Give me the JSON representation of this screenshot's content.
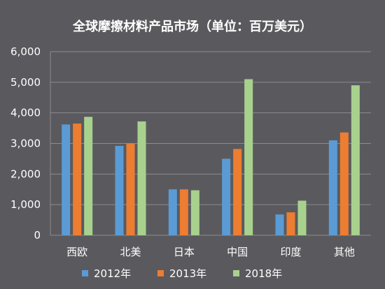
{
  "chart_data": {
    "type": "bar",
    "title": "全球摩擦材料产品市场（单位：百万美元）",
    "categories": [
      "西欧",
      "北美",
      "日本",
      "中国",
      "印度",
      "其他"
    ],
    "series": [
      {
        "name": "2012年",
        "color": "#5b9bd5",
        "values": [
          3620,
          2920,
          1500,
          2500,
          680,
          3100
        ]
      },
      {
        "name": "2013年",
        "color": "#ed7d31",
        "values": [
          3650,
          3000,
          1500,
          2820,
          750,
          3360
        ]
      },
      {
        "name": "2018年",
        "color": "#a9d18e",
        "values": [
          3870,
          3720,
          1470,
          5100,
          1130,
          4900
        ]
      }
    ],
    "yticks": [
      "0",
      "1,000",
      "2,000",
      "3,000",
      "4,000",
      "5,000",
      "6,000"
    ],
    "ylim": [
      0,
      6000
    ],
    "grid": true,
    "legend_position": "bottom"
  }
}
